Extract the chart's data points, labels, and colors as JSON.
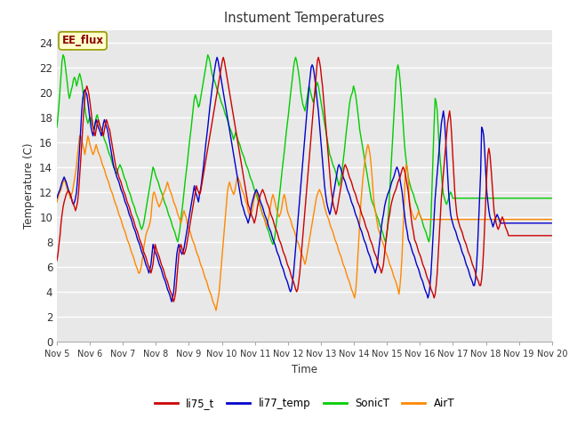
{
  "title": "Instument Temperatures",
  "xlabel": "Time",
  "ylabel": "Temperature (C)",
  "ylim": [
    0,
    25
  ],
  "yticks": [
    0,
    2,
    4,
    6,
    8,
    10,
    12,
    14,
    16,
    18,
    20,
    22,
    24
  ],
  "xtick_labels": [
    "Nov 5",
    "Nov 6",
    "Nov 7",
    "Nov 8",
    "Nov 9",
    "Nov 10",
    "Nov 11",
    "Nov 12",
    "Nov 13",
    "Nov 14",
    "Nov 15",
    "Nov 16",
    "Nov 17",
    "Nov 18",
    "Nov 19",
    "Nov 20"
  ],
  "annotation_text": "EE_flux",
  "annotation_bg": "#FFFFCC",
  "annotation_border": "#999900",
  "colors": {
    "li75_t": "#CC0000",
    "li77_temp": "#0000CC",
    "SonicT": "#00CC00",
    "AirT": "#FF8800"
  },
  "fig_bg": "#FFFFFF",
  "plot_bg": "#E8E8E8",
  "grid_color": "#FFFFFF",
  "n_points": 480,
  "li75_t": [
    6.5,
    7.0,
    7.8,
    8.5,
    9.5,
    10.2,
    10.8,
    11.2,
    11.5,
    11.8,
    12.0,
    12.1,
    12.0,
    11.8,
    11.5,
    11.2,
    11.0,
    10.8,
    10.5,
    10.8,
    11.2,
    12.0,
    13.2,
    14.5,
    15.8,
    17.2,
    18.5,
    19.5,
    20.2,
    20.5,
    20.2,
    19.8,
    19.2,
    18.5,
    17.8,
    17.2,
    16.8,
    16.5,
    17.0,
    17.5,
    17.8,
    17.5,
    17.2,
    17.0,
    16.8,
    16.5,
    17.0,
    17.5,
    17.8,
    17.5,
    17.2,
    17.0,
    16.5,
    16.0,
    15.5,
    15.0,
    14.5,
    14.0,
    13.8,
    13.5,
    13.2,
    13.0,
    12.8,
    12.5,
    12.2,
    12.0,
    11.8,
    11.5,
    11.2,
    11.0,
    10.8,
    10.5,
    10.2,
    10.0,
    9.8,
    9.5,
    9.2,
    9.0,
    8.8,
    8.5,
    8.2,
    8.0,
    7.8,
    7.5,
    7.2,
    7.0,
    6.8,
    6.5,
    6.2,
    6.0,
    5.8,
    5.5,
    5.8,
    6.2,
    7.0,
    7.8,
    7.5,
    7.2,
    7.0,
    6.8,
    6.5,
    6.2,
    6.0,
    5.8,
    5.5,
    5.2,
    5.0,
    4.8,
    4.5,
    4.2,
    4.0,
    3.8,
    3.5,
    3.2,
    3.5,
    4.0,
    5.0,
    6.0,
    7.0,
    7.5,
    7.8,
    7.5,
    7.2,
    7.0,
    7.2,
    7.5,
    8.0,
    8.5,
    9.0,
    9.5,
    10.0,
    10.5,
    11.0,
    11.5,
    12.0,
    12.5,
    12.2,
    12.0,
    11.8,
    12.0,
    12.5,
    13.0,
    13.5,
    14.0,
    14.5,
    15.0,
    15.5,
    16.0,
    16.5,
    17.0,
    17.5,
    18.0,
    18.5,
    19.0,
    19.5,
    20.0,
    20.5,
    21.0,
    21.5,
    22.0,
    22.5,
    22.8,
    22.5,
    22.0,
    21.5,
    21.0,
    20.5,
    20.0,
    19.5,
    19.0,
    18.5,
    18.0,
    17.5,
    17.0,
    16.5,
    16.0,
    15.5,
    15.0,
    14.5,
    14.0,
    13.5,
    13.0,
    12.5,
    12.0,
    11.5,
    11.0,
    10.8,
    10.5,
    10.2,
    10.0,
    9.8,
    9.5,
    9.8,
    10.2,
    10.8,
    11.2,
    11.5,
    11.8,
    12.0,
    12.2,
    12.0,
    11.8,
    11.5,
    11.2,
    11.0,
    10.8,
    10.5,
    10.2,
    10.0,
    9.8,
    9.5,
    9.2,
    9.0,
    8.8,
    8.5,
    8.2,
    8.0,
    7.8,
    7.5,
    7.2,
    7.0,
    6.8,
    6.5,
    6.2,
    6.0,
    5.8,
    5.5,
    5.2,
    5.0,
    4.8,
    4.5,
    4.2,
    4.0,
    4.2,
    4.8,
    5.5,
    6.5,
    7.5,
    8.5,
    9.5,
    10.5,
    11.5,
    12.5,
    13.5,
    14.5,
    15.5,
    16.5,
    17.5,
    18.5,
    19.5,
    20.5,
    21.5,
    22.5,
    22.8,
    22.5,
    22.0,
    21.2,
    20.5,
    19.5,
    18.5,
    17.5,
    16.5,
    15.5,
    14.5,
    13.5,
    12.5,
    11.8,
    11.2,
    10.8,
    10.5,
    10.2,
    10.5,
    11.0,
    11.5,
    12.0,
    12.5,
    13.0,
    13.5,
    14.0,
    14.2,
    14.0,
    13.8,
    13.5,
    13.2,
    13.0,
    12.8,
    12.5,
    12.2,
    12.0,
    11.8,
    11.5,
    11.2,
    11.0,
    10.8,
    10.5,
    10.2,
    10.0,
    9.8,
    9.5,
    9.2,
    9.0,
    8.8,
    8.5,
    8.2,
    8.0,
    7.8,
    7.5,
    7.2,
    7.0,
    6.8,
    6.5,
    6.2,
    6.0,
    5.8,
    5.5,
    5.8,
    6.2,
    7.0,
    7.8,
    8.5,
    9.2,
    9.8,
    10.2,
    10.8,
    11.2,
    11.5,
    11.8,
    12.0,
    12.2,
    12.5,
    12.8,
    13.0,
    13.2,
    13.5,
    13.8,
    14.0,
    13.8,
    13.5,
    13.0,
    12.5,
    12.0,
    11.2,
    10.5,
    9.8,
    9.2,
    8.8,
    8.2,
    8.0,
    7.8,
    7.5,
    7.2,
    7.0,
    6.8,
    6.5,
    6.2,
    6.0,
    5.8,
    5.5,
    5.2,
    5.0,
    4.8,
    4.5,
    4.2,
    4.0,
    3.8,
    3.5,
    3.8,
    4.5,
    5.5,
    7.0,
    8.5,
    10.0,
    11.5,
    12.5,
    13.5,
    14.5,
    15.5,
    16.5,
    17.5,
    18.0,
    18.5,
    17.8,
    16.5,
    15.0,
    13.5,
    12.0,
    11.0,
    10.2,
    9.8,
    9.5,
    9.2,
    9.0,
    8.8,
    8.5,
    8.2,
    8.0,
    7.8,
    7.5,
    7.2,
    7.0,
    6.8,
    6.5,
    6.2,
    6.0,
    5.8,
    5.5,
    5.2,
    5.0,
    4.8,
    4.5,
    4.5,
    5.0,
    6.0,
    7.5,
    9.5,
    11.5,
    13.5,
    15.0,
    15.5,
    15.0,
    14.0,
    12.8,
    11.5,
    10.5,
    10.0,
    9.5,
    9.2,
    9.0,
    9.2,
    9.5,
    9.8,
    10.0,
    9.8,
    9.5,
    9.2,
    9.0,
    8.8,
    8.5
  ],
  "li77_temp": [
    11.5,
    11.8,
    12.0,
    12.2,
    12.5,
    12.8,
    13.0,
    13.2,
    13.0,
    12.8,
    12.5,
    12.2,
    12.0,
    11.8,
    11.5,
    11.2,
    11.0,
    11.2,
    11.5,
    12.0,
    13.0,
    14.2,
    15.5,
    17.0,
    18.5,
    19.5,
    20.0,
    20.2,
    20.0,
    19.8,
    19.2,
    18.5,
    17.8,
    17.2,
    16.8,
    16.5,
    17.0,
    17.5,
    17.8,
    17.5,
    17.2,
    17.0,
    16.8,
    16.5,
    17.0,
    17.5,
    17.8,
    17.5,
    17.2,
    17.0,
    16.5,
    16.0,
    15.5,
    15.0,
    14.5,
    14.0,
    13.8,
    13.5,
    13.2,
    13.0,
    12.8,
    12.5,
    12.2,
    12.0,
    11.8,
    11.5,
    11.2,
    11.0,
    10.8,
    10.5,
    10.2,
    10.0,
    9.8,
    9.5,
    9.2,
    9.0,
    8.8,
    8.5,
    8.2,
    8.0,
    7.8,
    7.5,
    7.2,
    7.0,
    6.8,
    6.5,
    6.2,
    6.0,
    5.8,
    5.5,
    5.8,
    6.2,
    7.0,
    7.8,
    7.5,
    7.2,
    7.0,
    6.8,
    6.5,
    6.2,
    6.0,
    5.8,
    5.5,
    5.2,
    5.0,
    4.8,
    4.5,
    4.2,
    4.0,
    3.8,
    3.5,
    3.2,
    3.5,
    4.0,
    5.0,
    6.0,
    7.0,
    7.5,
    7.8,
    7.5,
    7.2,
    7.0,
    7.2,
    7.5,
    8.0,
    8.5,
    9.0,
    9.5,
    10.0,
    10.5,
    11.0,
    11.5,
    12.0,
    12.5,
    12.0,
    11.8,
    11.5,
    11.2,
    11.8,
    12.2,
    12.8,
    13.5,
    14.2,
    15.0,
    15.8,
    16.5,
    17.2,
    18.0,
    18.8,
    19.5,
    20.2,
    20.8,
    21.5,
    22.0,
    22.5,
    22.8,
    22.5,
    22.0,
    21.5,
    21.0,
    20.5,
    20.0,
    19.5,
    19.0,
    18.5,
    18.0,
    17.5,
    17.0,
    16.5,
    16.0,
    15.5,
    15.0,
    14.5,
    14.0,
    13.5,
    13.0,
    12.5,
    12.0,
    11.5,
    11.0,
    10.8,
    10.5,
    10.2,
    10.0,
    9.8,
    9.5,
    9.8,
    10.2,
    10.8,
    11.2,
    11.5,
    11.8,
    12.0,
    12.2,
    12.0,
    11.8,
    11.5,
    11.2,
    11.0,
    10.8,
    10.5,
    10.2,
    10.0,
    9.8,
    9.5,
    9.2,
    9.0,
    8.8,
    8.5,
    8.2,
    8.0,
    7.8,
    7.5,
    7.2,
    7.0,
    6.8,
    6.5,
    6.2,
    6.0,
    5.8,
    5.5,
    5.2,
    5.0,
    4.8,
    4.5,
    4.2,
    4.0,
    4.2,
    4.8,
    5.5,
    6.5,
    7.5,
    8.5,
    9.5,
    10.5,
    11.5,
    12.5,
    13.5,
    14.5,
    15.5,
    16.5,
    17.5,
    18.5,
    19.5,
    20.5,
    21.2,
    22.0,
    22.2,
    22.0,
    21.5,
    20.8,
    20.0,
    19.2,
    18.5,
    17.5,
    16.5,
    15.5,
    14.5,
    13.5,
    12.5,
    11.8,
    11.2,
    10.8,
    10.5,
    10.2,
    10.5,
    11.0,
    11.5,
    12.0,
    12.5,
    13.0,
    13.5,
    14.0,
    14.2,
    14.0,
    13.8,
    13.5,
    13.2,
    13.0,
    12.8,
    12.5,
    12.2,
    12.0,
    11.8,
    11.5,
    11.2,
    11.0,
    10.8,
    10.5,
    10.2,
    10.0,
    9.8,
    9.5,
    9.2,
    9.0,
    8.8,
    8.5,
    8.2,
    8.0,
    7.8,
    7.5,
    7.2,
    7.0,
    6.8,
    6.5,
    6.2,
    6.0,
    5.8,
    5.5,
    5.8,
    6.2,
    7.0,
    7.8,
    8.5,
    9.2,
    9.8,
    10.2,
    10.8,
    11.2,
    11.5,
    11.8,
    12.0,
    12.2,
    12.5,
    12.8,
    13.0,
    13.2,
    13.5,
    13.8,
    14.0,
    13.8,
    13.5,
    13.0,
    12.5,
    12.0,
    11.2,
    10.5,
    9.8,
    9.2,
    8.8,
    8.2,
    8.0,
    7.8,
    7.5,
    7.2,
    7.0,
    6.8,
    6.5,
    6.2,
    6.0,
    5.8,
    5.5,
    5.2,
    5.0,
    4.8,
    4.5,
    4.2,
    4.0,
    3.8,
    3.5,
    3.8,
    4.5,
    5.5,
    7.0,
    8.5,
    10.0,
    11.5,
    12.5,
    13.5,
    14.5,
    15.5,
    16.5,
    17.5,
    18.0,
    18.5,
    17.8,
    16.5,
    15.0,
    13.5,
    12.0,
    11.0,
    10.2,
    9.8,
    9.5,
    9.2,
    9.0,
    8.8,
    8.5,
    8.2,
    8.0,
    7.8,
    7.5,
    7.2,
    7.0,
    6.8,
    6.5,
    6.2,
    6.0,
    5.8,
    5.5,
    5.2,
    5.0,
    4.8,
    4.5,
    4.5,
    5.0,
    6.0,
    7.5,
    9.5,
    11.5,
    13.5,
    17.2,
    17.0,
    16.5,
    15.2,
    13.5,
    12.0,
    11.2,
    10.5,
    10.0,
    9.8,
    9.5,
    9.2,
    9.5,
    9.8,
    10.0,
    10.2,
    10.0,
    9.8,
    9.5
  ],
  "SonicT": [
    17.2,
    18.0,
    19.0,
    20.2,
    21.5,
    22.5,
    23.0,
    22.8,
    22.2,
    21.5,
    20.8,
    20.0,
    19.5,
    19.8,
    20.2,
    20.5,
    21.0,
    21.2,
    21.0,
    20.5,
    20.8,
    21.2,
    21.5,
    21.2,
    20.8,
    20.2,
    19.5,
    18.8,
    18.2,
    17.8,
    17.5,
    17.8,
    18.0,
    17.8,
    17.5,
    17.2,
    17.0,
    17.5,
    18.0,
    18.2,
    17.8,
    17.5,
    17.2,
    17.0,
    16.8,
    16.5,
    16.2,
    16.0,
    15.8,
    15.5,
    15.2,
    15.0,
    14.8,
    14.5,
    14.2,
    14.0,
    13.8,
    13.5,
    13.5,
    13.8,
    14.0,
    14.2,
    14.0,
    13.8,
    13.5,
    13.2,
    13.0,
    12.8,
    12.5,
    12.2,
    12.0,
    11.8,
    11.5,
    11.2,
    11.0,
    10.8,
    10.5,
    10.2,
    10.0,
    9.8,
    9.5,
    9.2,
    9.0,
    9.2,
    9.5,
    10.0,
    10.5,
    11.0,
    11.5,
    12.0,
    12.5,
    13.0,
    13.5,
    14.0,
    13.8,
    13.5,
    13.2,
    13.0,
    12.8,
    12.5,
    12.2,
    12.0,
    11.8,
    11.5,
    11.2,
    11.0,
    10.8,
    10.5,
    10.2,
    10.0,
    9.8,
    9.5,
    9.2,
    9.0,
    8.8,
    8.5,
    8.2,
    8.0,
    8.5,
    9.0,
    9.8,
    10.5,
    11.2,
    12.0,
    12.8,
    13.5,
    14.2,
    15.0,
    15.8,
    16.5,
    17.2,
    18.0,
    18.8,
    19.5,
    19.8,
    19.5,
    19.2,
    18.8,
    19.0,
    19.5,
    20.0,
    20.5,
    21.0,
    21.5,
    22.0,
    22.5,
    23.0,
    22.8,
    22.5,
    22.0,
    21.5,
    21.2,
    21.0,
    20.8,
    20.5,
    20.2,
    20.0,
    19.8,
    19.5,
    19.2,
    19.0,
    18.8,
    18.5,
    18.2,
    18.0,
    17.8,
    17.5,
    17.2,
    17.0,
    16.8,
    16.5,
    16.2,
    16.5,
    16.8,
    16.5,
    16.2,
    16.0,
    15.8,
    15.5,
    15.2,
    15.0,
    14.8,
    14.5,
    14.2,
    14.0,
    13.8,
    13.5,
    13.2,
    13.0,
    12.8,
    12.5,
    12.2,
    12.0,
    11.8,
    11.5,
    11.2,
    11.0,
    10.8,
    10.5,
    10.2,
    10.0,
    9.8,
    9.5,
    9.2,
    9.0,
    8.8,
    8.5,
    8.2,
    8.0,
    7.8,
    8.0,
    8.5,
    9.2,
    10.0,
    10.8,
    11.5,
    12.2,
    13.0,
    13.8,
    14.5,
    15.2,
    16.0,
    16.8,
    17.5,
    18.2,
    19.0,
    19.8,
    20.5,
    21.2,
    22.0,
    22.5,
    22.8,
    22.5,
    22.0,
    21.5,
    20.8,
    20.0,
    19.5,
    19.0,
    18.8,
    18.5,
    19.0,
    19.5,
    20.0,
    20.5,
    20.2,
    19.8,
    19.5,
    19.2,
    19.5,
    20.0,
    20.5,
    20.8,
    20.5,
    20.0,
    19.5,
    19.0,
    18.5,
    18.0,
    17.5,
    17.0,
    16.5,
    16.0,
    15.5,
    15.0,
    14.8,
    14.5,
    14.2,
    14.0,
    13.8,
    13.5,
    13.2,
    12.8,
    12.5,
    12.8,
    13.2,
    13.8,
    14.5,
    15.2,
    16.0,
    16.8,
    17.5,
    18.2,
    19.0,
    19.5,
    19.8,
    20.0,
    20.5,
    20.2,
    19.8,
    19.2,
    18.5,
    17.8,
    17.0,
    16.5,
    16.0,
    15.5,
    15.0,
    14.5,
    14.0,
    13.5,
    13.0,
    12.5,
    12.0,
    11.5,
    11.2,
    11.0,
    10.8,
    10.5,
    10.2,
    10.0,
    9.8,
    9.5,
    9.2,
    9.0,
    8.8,
    8.5,
    8.2,
    8.0,
    8.5,
    9.2,
    10.5,
    12.0,
    13.5,
    15.0,
    16.5,
    18.0,
    19.5,
    21.0,
    21.8,
    22.2,
    21.8,
    21.0,
    20.0,
    18.8,
    17.5,
    16.2,
    15.2,
    14.5,
    13.8,
    13.2,
    12.8,
    12.5,
    12.2,
    12.0,
    11.8,
    11.5,
    11.2,
    11.0,
    10.8,
    10.5,
    10.2,
    10.0,
    9.8,
    9.5,
    9.2,
    9.0,
    8.8,
    8.5,
    8.2,
    8.0,
    8.5,
    10.0,
    12.5,
    15.0,
    17.5,
    19.5,
    19.2,
    18.5,
    17.0,
    15.5,
    14.5,
    13.5,
    12.5,
    11.8,
    11.5,
    11.2,
    11.0,
    11.2,
    11.5,
    11.8,
    12.0,
    11.8,
    11.5
  ],
  "AirT": [
    11.2,
    11.5,
    11.8,
    12.0,
    12.2,
    12.5,
    12.8,
    13.0,
    12.8,
    12.5,
    12.2,
    12.0,
    11.8,
    11.5,
    11.8,
    12.0,
    12.5,
    13.0,
    13.5,
    14.2,
    15.0,
    15.8,
    16.5,
    16.5,
    16.2,
    15.8,
    15.5,
    15.0,
    15.5,
    16.0,
    16.5,
    16.2,
    15.8,
    15.5,
    15.2,
    15.0,
    15.2,
    15.5,
    15.8,
    15.5,
    15.2,
    15.0,
    14.8,
    14.5,
    14.2,
    14.0,
    13.8,
    13.5,
    13.2,
    13.0,
    12.8,
    12.5,
    12.2,
    12.0,
    11.8,
    11.5,
    11.2,
    11.0,
    10.8,
    10.5,
    10.2,
    10.0,
    9.8,
    9.5,
    9.2,
    9.0,
    8.8,
    8.5,
    8.2,
    8.0,
    7.8,
    7.5,
    7.2,
    7.0,
    6.8,
    6.5,
    6.2,
    6.0,
    5.8,
    5.5,
    5.5,
    5.8,
    6.2,
    6.8,
    7.5,
    8.0,
    8.5,
    8.8,
    9.0,
    9.2,
    9.5,
    10.0,
    11.0,
    11.8,
    12.0,
    11.8,
    11.5,
    11.2,
    11.0,
    10.8,
    11.0,
    11.2,
    11.5,
    11.8,
    12.0,
    12.2,
    12.5,
    12.8,
    12.5,
    12.2,
    12.0,
    11.8,
    11.5,
    11.2,
    11.0,
    10.8,
    10.5,
    10.2,
    10.0,
    9.8,
    9.5,
    9.8,
    10.2,
    10.5,
    10.2,
    10.0,
    9.5,
    9.2,
    9.0,
    8.8,
    8.5,
    8.2,
    8.0,
    7.8,
    7.5,
    7.2,
    7.0,
    6.8,
    6.5,
    6.2,
    6.0,
    5.8,
    5.5,
    5.2,
    5.0,
    4.8,
    4.5,
    4.2,
    4.0,
    3.8,
    3.5,
    3.2,
    3.0,
    2.8,
    2.5,
    3.0,
    3.5,
    4.0,
    5.0,
    6.0,
    7.0,
    8.0,
    9.0,
    10.0,
    11.0,
    12.0,
    12.5,
    12.8,
    12.5,
    12.2,
    12.0,
    11.8,
    12.0,
    12.5,
    13.0,
    13.2,
    13.0,
    12.8,
    12.5,
    12.2,
    12.0,
    11.8,
    11.5,
    11.2,
    11.0,
    10.5,
    10.2,
    10.0,
    10.2,
    10.5,
    11.0,
    11.5,
    11.8,
    12.0,
    11.8,
    11.5,
    11.0,
    10.8,
    10.5,
    10.2,
    10.0,
    9.8,
    9.5,
    9.2,
    9.5,
    10.0,
    10.5,
    11.0,
    11.5,
    11.8,
    11.5,
    11.2,
    10.8,
    10.5,
    10.2,
    10.0,
    10.2,
    10.5,
    11.0,
    11.5,
    11.8,
    11.5,
    11.0,
    10.5,
    10.2,
    10.0,
    9.8,
    9.5,
    9.2,
    9.0,
    8.8,
    8.5,
    8.2,
    8.0,
    7.8,
    7.5,
    7.2,
    7.0,
    6.8,
    6.5,
    6.2,
    6.5,
    7.0,
    7.5,
    8.0,
    8.5,
    9.0,
    9.5,
    10.0,
    10.5,
    11.0,
    11.5,
    11.8,
    12.0,
    12.2,
    12.0,
    11.8,
    11.5,
    11.2,
    10.8,
    10.5,
    10.2,
    10.0,
    9.8,
    9.5,
    9.2,
    9.0,
    8.8,
    8.5,
    8.2,
    8.0,
    7.8,
    7.5,
    7.2,
    7.0,
    6.8,
    6.5,
    6.2,
    6.0,
    5.8,
    5.5,
    5.2,
    5.0,
    4.8,
    4.5,
    4.2,
    4.0,
    3.8,
    3.5,
    4.0,
    5.0,
    6.5,
    8.0,
    9.5,
    11.0,
    12.0,
    13.0,
    13.8,
    14.5,
    15.0,
    15.5,
    15.8,
    15.5,
    15.0,
    14.2,
    13.2,
    12.0,
    11.0,
    10.5,
    10.0,
    9.5,
    9.0,
    8.8,
    8.5,
    8.2,
    8.0,
    7.8,
    7.5,
    7.2,
    7.0,
    6.8,
    6.5,
    6.2,
    6.0,
    5.8,
    5.5,
    5.2,
    5.0,
    4.8,
    4.5,
    4.2,
    3.8,
    4.5,
    5.5,
    7.0,
    9.0,
    11.0,
    13.5,
    14.2,
    14.0,
    13.0,
    11.5,
    10.8,
    10.5,
    10.2,
    10.0,
    9.8,
    9.8,
    10.0,
    10.2,
    10.5,
    10.2,
    10.0,
    9.8
  ]
}
